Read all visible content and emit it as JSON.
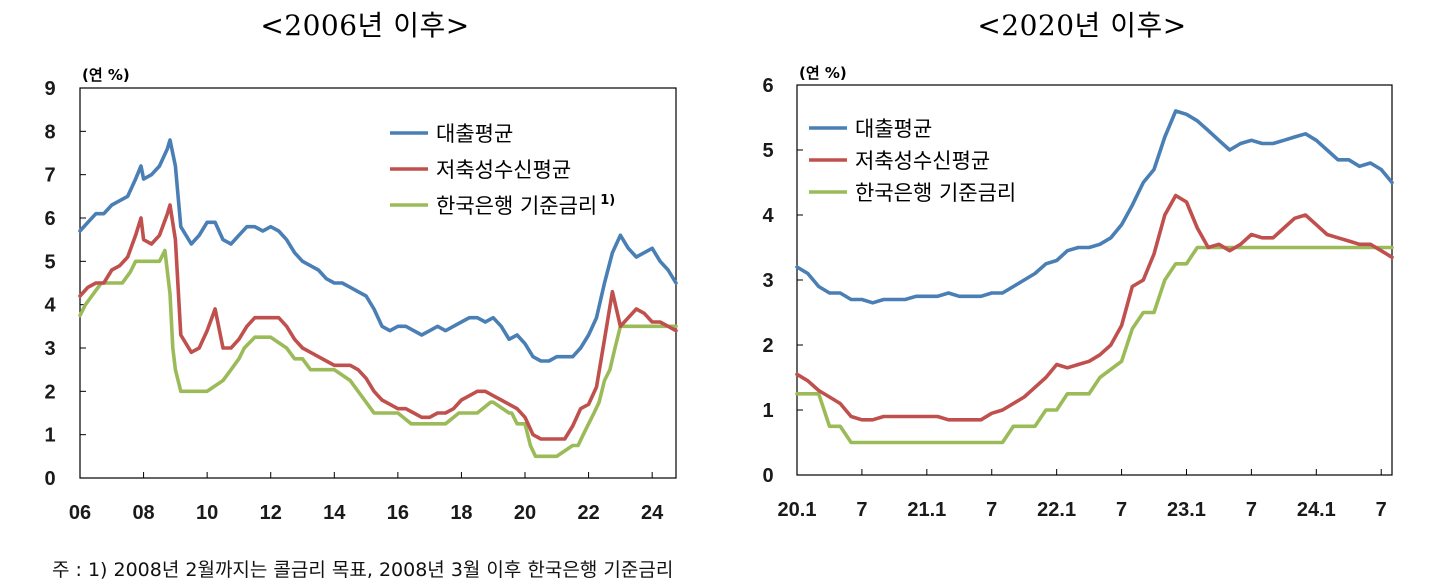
{
  "footnote": "주 : 1) 2008년 2월까지는 콜금리 목표, 2008년 3월 이후 한국은행 기준금리",
  "chart_data": [
    {
      "type": "line",
      "title": "<2006년 이후>",
      "unit_label": "(연 %)",
      "x_ticks": [
        "06",
        "08",
        "10",
        "12",
        "14",
        "16",
        "18",
        "20",
        "22",
        "24"
      ],
      "x_tick_values": [
        2006,
        2008,
        2010,
        2012,
        2014,
        2016,
        2018,
        2020,
        2022,
        2024
      ],
      "xlim": [
        2006,
        2024.75
      ],
      "ylim": [
        0,
        9
      ],
      "y_ticks": [
        0,
        1,
        2,
        3,
        4,
        5,
        6,
        7,
        8,
        9
      ],
      "grid": false,
      "legend_position": "top-right",
      "series": [
        {
          "name": "대출평균",
          "color": "#4a7fb5",
          "x": [
            2006.0,
            2006.25,
            2006.5,
            2006.75,
            2007.0,
            2007.25,
            2007.5,
            2007.75,
            2007.92,
            2008.0,
            2008.25,
            2008.5,
            2008.75,
            2008.83,
            2009.0,
            2009.17,
            2009.5,
            2009.75,
            2010.0,
            2010.25,
            2010.5,
            2010.75,
            2011.0,
            2011.25,
            2011.5,
            2011.75,
            2012.0,
            2012.25,
            2012.5,
            2012.75,
            2013.0,
            2013.25,
            2013.5,
            2013.75,
            2014.0,
            2014.25,
            2014.5,
            2014.75,
            2015.0,
            2015.25,
            2015.5,
            2015.75,
            2016.0,
            2016.25,
            2016.5,
            2016.75,
            2017.0,
            2017.25,
            2017.5,
            2017.75,
            2018.0,
            2018.25,
            2018.5,
            2018.75,
            2019.0,
            2019.25,
            2019.5,
            2019.75,
            2020.0,
            2020.25,
            2020.5,
            2020.75,
            2021.0,
            2021.25,
            2021.5,
            2021.75,
            2022.0,
            2022.25,
            2022.5,
            2022.75,
            2023.0,
            2023.25,
            2023.5,
            2023.75,
            2024.0,
            2024.25,
            2024.5,
            2024.75
          ],
          "values": [
            5.7,
            5.9,
            6.1,
            6.1,
            6.3,
            6.4,
            6.5,
            6.9,
            7.2,
            6.9,
            7.0,
            7.2,
            7.6,
            7.8,
            7.2,
            5.8,
            5.4,
            5.6,
            5.9,
            5.9,
            5.5,
            5.4,
            5.6,
            5.8,
            5.8,
            5.7,
            5.8,
            5.7,
            5.5,
            5.2,
            5.0,
            4.9,
            4.8,
            4.6,
            4.5,
            4.5,
            4.4,
            4.3,
            4.2,
            3.9,
            3.5,
            3.4,
            3.5,
            3.5,
            3.4,
            3.3,
            3.4,
            3.5,
            3.4,
            3.5,
            3.6,
            3.7,
            3.7,
            3.6,
            3.7,
            3.5,
            3.2,
            3.3,
            3.1,
            2.8,
            2.7,
            2.7,
            2.8,
            2.8,
            2.8,
            3.0,
            3.3,
            3.7,
            4.5,
            5.2,
            5.6,
            5.3,
            5.1,
            5.2,
            5.3,
            5.0,
            4.8,
            4.5
          ]
        },
        {
          "name": "저축성수신평균",
          "color": "#c0504d",
          "x": [
            2006.0,
            2006.25,
            2006.5,
            2006.75,
            2007.0,
            2007.25,
            2007.5,
            2007.75,
            2007.92,
            2008.0,
            2008.25,
            2008.5,
            2008.75,
            2008.83,
            2009.0,
            2009.17,
            2009.5,
            2009.75,
            2010.0,
            2010.25,
            2010.5,
            2010.75,
            2011.0,
            2011.25,
            2011.5,
            2011.75,
            2012.0,
            2012.25,
            2012.5,
            2012.75,
            2013.0,
            2013.25,
            2013.5,
            2013.75,
            2014.0,
            2014.25,
            2014.5,
            2014.75,
            2015.0,
            2015.25,
            2015.5,
            2015.75,
            2016.0,
            2016.25,
            2016.5,
            2016.75,
            2017.0,
            2017.25,
            2017.5,
            2017.75,
            2018.0,
            2018.25,
            2018.5,
            2018.75,
            2019.0,
            2019.25,
            2019.5,
            2019.75,
            2020.0,
            2020.25,
            2020.5,
            2020.75,
            2021.0,
            2021.25,
            2021.5,
            2021.75,
            2022.0,
            2022.25,
            2022.5,
            2022.75,
            2023.0,
            2023.25,
            2023.5,
            2023.75,
            2024.0,
            2024.25,
            2024.5,
            2024.75
          ],
          "values": [
            4.2,
            4.4,
            4.5,
            4.5,
            4.8,
            4.9,
            5.1,
            5.6,
            6.0,
            5.5,
            5.4,
            5.6,
            6.1,
            6.3,
            5.5,
            3.3,
            2.9,
            3.0,
            3.4,
            3.9,
            3.0,
            3.0,
            3.2,
            3.5,
            3.7,
            3.7,
            3.7,
            3.7,
            3.5,
            3.2,
            3.0,
            2.9,
            2.8,
            2.7,
            2.6,
            2.6,
            2.6,
            2.5,
            2.3,
            2.0,
            1.8,
            1.7,
            1.6,
            1.6,
            1.5,
            1.4,
            1.4,
            1.5,
            1.5,
            1.6,
            1.8,
            1.9,
            2.0,
            2.0,
            1.9,
            1.8,
            1.7,
            1.6,
            1.4,
            1.0,
            0.9,
            0.9,
            0.9,
            0.9,
            1.2,
            1.6,
            1.7,
            2.1,
            3.2,
            4.3,
            3.5,
            3.7,
            3.9,
            3.8,
            3.6,
            3.6,
            3.5,
            3.4
          ]
        },
        {
          "name": "한국은행 기준금리",
          "legend_superscript": "1)",
          "color": "#9bbb59",
          "x": [
            2006.0,
            2006.17,
            2006.42,
            2006.67,
            2007.0,
            2007.33,
            2007.58,
            2007.75,
            2008.0,
            2008.25,
            2008.5,
            2008.67,
            2008.83,
            2008.92,
            2009.0,
            2009.17,
            2010.0,
            2010.5,
            2010.75,
            2011.0,
            2011.17,
            2011.5,
            2011.75,
            2012.0,
            2012.5,
            2012.75,
            2013.0,
            2013.25,
            2014.0,
            2014.5,
            2014.75,
            2015.0,
            2015.25,
            2015.5,
            2016.0,
            2016.42,
            2017.0,
            2017.5,
            2017.92,
            2018.0,
            2018.5,
            2018.92,
            2019.0,
            2019.5,
            2019.58,
            2019.75,
            2020.0,
            2020.17,
            2020.33,
            2020.42,
            2020.5,
            2021.0,
            2021.5,
            2021.67,
            2021.83,
            2022.0,
            2022.17,
            2022.33,
            2022.5,
            2022.67,
            2022.83,
            2023.0,
            2024.0,
            2024.75
          ],
          "values": [
            3.75,
            4.0,
            4.25,
            4.5,
            4.5,
            4.5,
            4.75,
            5.0,
            5.0,
            5.0,
            5.0,
            5.25,
            4.25,
            3.0,
            2.5,
            2.0,
            2.0,
            2.25,
            2.5,
            2.75,
            3.0,
            3.25,
            3.25,
            3.25,
            3.0,
            2.75,
            2.75,
            2.5,
            2.5,
            2.25,
            2.0,
            1.75,
            1.5,
            1.5,
            1.5,
            1.25,
            1.25,
            1.25,
            1.5,
            1.5,
            1.5,
            1.75,
            1.75,
            1.5,
            1.5,
            1.25,
            1.25,
            0.75,
            0.5,
            0.5,
            0.5,
            0.5,
            0.75,
            0.75,
            1.0,
            1.25,
            1.5,
            1.75,
            2.25,
            2.5,
            3.0,
            3.5,
            3.5,
            3.5
          ]
        }
      ]
    },
    {
      "type": "line",
      "title": "<2020년 이후>",
      "unit_label": "(연 %)",
      "x_ticks": [
        "20.1",
        "7",
        "21.1",
        "7",
        "22.1",
        "7",
        "23.1",
        "7",
        "24.1",
        "7"
      ],
      "x_tick_values": [
        2020.0,
        2020.5,
        2021.0,
        2021.5,
        2022.0,
        2022.5,
        2023.0,
        2023.5,
        2024.0,
        2024.5
      ],
      "xlim": [
        2020.0,
        2024.583
      ],
      "ylim": [
        0,
        6
      ],
      "y_ticks": [
        0,
        1,
        2,
        3,
        4,
        5,
        6
      ],
      "grid": false,
      "legend_position": "top-left",
      "series": [
        {
          "name": "대출평균",
          "color": "#4a7fb5",
          "x": [
            2020.0,
            2020.083,
            2020.167,
            2020.25,
            2020.333,
            2020.417,
            2020.5,
            2020.583,
            2020.667,
            2020.75,
            2020.833,
            2020.917,
            2021.0,
            2021.083,
            2021.167,
            2021.25,
            2021.333,
            2021.417,
            2021.5,
            2021.583,
            2021.667,
            2021.75,
            2021.833,
            2021.917,
            2022.0,
            2022.083,
            2022.167,
            2022.25,
            2022.333,
            2022.417,
            2022.5,
            2022.583,
            2022.667,
            2022.75,
            2022.833,
            2022.917,
            2023.0,
            2023.083,
            2023.167,
            2023.25,
            2023.333,
            2023.417,
            2023.5,
            2023.583,
            2023.667,
            2023.75,
            2023.833,
            2023.917,
            2024.0,
            2024.083,
            2024.167,
            2024.25,
            2024.333,
            2024.417,
            2024.5,
            2024.583
          ],
          "values": [
            3.2,
            3.1,
            2.9,
            2.8,
            2.8,
            2.7,
            2.7,
            2.65,
            2.7,
            2.7,
            2.7,
            2.75,
            2.75,
            2.75,
            2.8,
            2.75,
            2.75,
            2.75,
            2.8,
            2.8,
            2.9,
            3.0,
            3.1,
            3.25,
            3.3,
            3.45,
            3.5,
            3.5,
            3.55,
            3.65,
            3.85,
            4.15,
            4.5,
            4.7,
            5.2,
            5.6,
            5.55,
            5.45,
            5.3,
            5.15,
            5.0,
            5.1,
            5.15,
            5.1,
            5.1,
            5.15,
            5.2,
            5.25,
            5.15,
            5.0,
            4.85,
            4.85,
            4.75,
            4.8,
            4.7,
            4.5
          ]
        },
        {
          "name": "저축성수신평균",
          "color": "#c0504d",
          "x": [
            2020.0,
            2020.083,
            2020.167,
            2020.25,
            2020.333,
            2020.417,
            2020.5,
            2020.583,
            2020.667,
            2020.75,
            2020.833,
            2020.917,
            2021.0,
            2021.083,
            2021.167,
            2021.25,
            2021.333,
            2021.417,
            2021.5,
            2021.583,
            2021.667,
            2021.75,
            2021.833,
            2021.917,
            2022.0,
            2022.083,
            2022.167,
            2022.25,
            2022.333,
            2022.417,
            2022.5,
            2022.583,
            2022.667,
            2022.75,
            2022.833,
            2022.917,
            2023.0,
            2023.083,
            2023.167,
            2023.25,
            2023.333,
            2023.417,
            2023.5,
            2023.583,
            2023.667,
            2023.75,
            2023.833,
            2023.917,
            2024.0,
            2024.083,
            2024.167,
            2024.25,
            2024.333,
            2024.417,
            2024.5,
            2024.583
          ],
          "values": [
            1.55,
            1.45,
            1.3,
            1.2,
            1.1,
            0.9,
            0.85,
            0.85,
            0.9,
            0.9,
            0.9,
            0.9,
            0.9,
            0.9,
            0.85,
            0.85,
            0.85,
            0.85,
            0.95,
            1.0,
            1.1,
            1.2,
            1.35,
            1.5,
            1.7,
            1.65,
            1.7,
            1.75,
            1.85,
            2.0,
            2.3,
            2.9,
            3.0,
            3.4,
            4.0,
            4.3,
            4.2,
            3.8,
            3.5,
            3.55,
            3.45,
            3.55,
            3.7,
            3.65,
            3.65,
            3.8,
            3.95,
            4.0,
            3.85,
            3.7,
            3.65,
            3.6,
            3.55,
            3.55,
            3.45,
            3.35
          ]
        },
        {
          "name": "한국은행 기준금리",
          "color": "#9bbb59",
          "x": [
            2020.0,
            2020.167,
            2020.25,
            2020.333,
            2020.417,
            2020.5,
            2021.583,
            2021.667,
            2021.833,
            2021.917,
            2022.0,
            2022.083,
            2022.25,
            2022.333,
            2022.5,
            2022.583,
            2022.667,
            2022.75,
            2022.833,
            2022.917,
            2023.0,
            2023.083,
            2024.583
          ],
          "values": [
            1.25,
            1.25,
            0.75,
            0.75,
            0.5,
            0.5,
            0.5,
            0.75,
            0.75,
            1.0,
            1.0,
            1.25,
            1.25,
            1.5,
            1.75,
            2.25,
            2.5,
            2.5,
            3.0,
            3.25,
            3.25,
            3.5,
            3.5
          ]
        }
      ]
    }
  ]
}
